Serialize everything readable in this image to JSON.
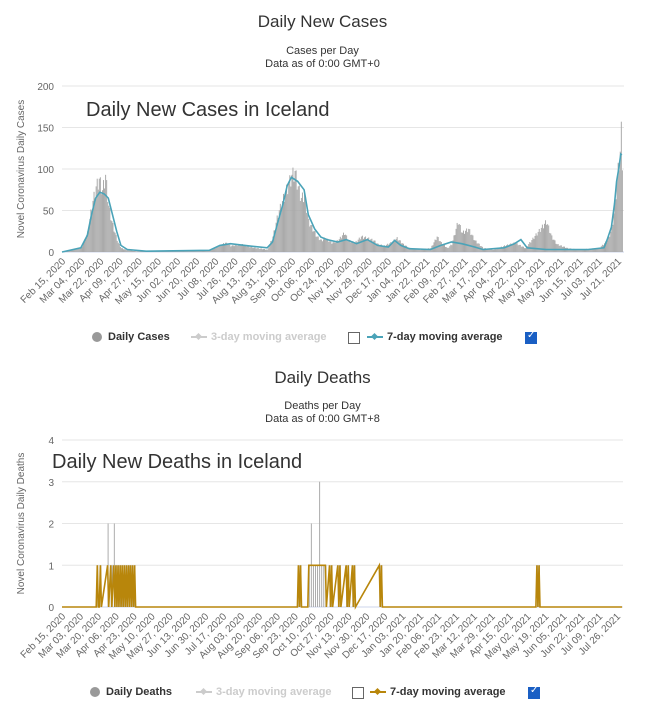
{
  "cases": {
    "title": "Daily New Cases",
    "subtitle_line1": "Cases per Day",
    "subtitle_line2": "Data as of 0:00 GMT+0",
    "overlay_title": "Daily New Cases in Iceland",
    "legend": {
      "bars": "Daily Cases",
      "ma3": "3-day moving average",
      "ma7": "7-day moving average"
    },
    "colors": {
      "bars": "#a6a6a6",
      "ma7": "#4aa3b8",
      "ma3": "#cccccc"
    },
    "chart_data": {
      "type": "bar",
      "ylabel": "Novel Coronavirus Daily Cases",
      "ylim": [
        0,
        200
      ],
      "yticks": [
        0,
        50,
        100,
        150,
        200
      ],
      "x_ticks": [
        "Feb 15, 2020",
        "Mar 04, 2020",
        "Mar 22, 2020",
        "Apr 09, 2020",
        "Apr 27, 2020",
        "May 15, 2020",
        "Jun 02, 2020",
        "Jun 20, 2020",
        "Jul 08, 2020",
        "Jul 26, 2020",
        "Aug 13, 2020",
        "Aug 31, 2020",
        "Sep 18, 2020",
        "Oct 06, 2020",
        "Oct 24, 2020",
        "Nov 11, 2020",
        "Nov 29, 2020",
        "Dec 17, 2020",
        "Jan 04, 2021",
        "Jan 22, 2021",
        "Feb 09, 2021",
        "Feb 27, 2021",
        "Mar 17, 2021",
        "Apr 04, 2021",
        "Apr 22, 2021",
        "May 10, 2021",
        "May 28, 2021",
        "Jun 15, 2021",
        "Jul 03, 2021",
        "Jul 21, 2021"
      ],
      "series": [
        {
          "name": "Daily Cases",
          "kind": "bar",
          "points": [
            [
              0,
              0
            ],
            [
              18,
              5
            ],
            [
              24,
              25
            ],
            [
              28,
              60
            ],
            [
              32,
              85
            ],
            [
              35,
              95
            ],
            [
              38,
              80
            ],
            [
              41,
              100
            ],
            [
              44,
              60
            ],
            [
              47,
              40
            ],
            [
              50,
              25
            ],
            [
              53,
              12
            ],
            [
              56,
              5
            ],
            [
              60,
              3
            ],
            [
              70,
              1
            ],
            [
              100,
              1
            ],
            [
              140,
              2
            ],
            [
              155,
              12
            ],
            [
              160,
              8
            ],
            [
              170,
              10
            ],
            [
              180,
              6
            ],
            [
              190,
              4
            ],
            [
              195,
              3
            ],
            [
              200,
              20
            ],
            [
              205,
              50
            ],
            [
              210,
              70
            ],
            [
              214,
              85
            ],
            [
              218,
              100
            ],
            [
              221,
              105
            ],
            [
              224,
              85
            ],
            [
              227,
              70
            ],
            [
              230,
              75
            ],
            [
              234,
              40
            ],
            [
              238,
              30
            ],
            [
              242,
              20
            ],
            [
              246,
              15
            ],
            [
              250,
              18
            ],
            [
              256,
              12
            ],
            [
              262,
              15
            ],
            [
              268,
              25
            ],
            [
              272,
              15
            ],
            [
              278,
              12
            ],
            [
              284,
              20
            ],
            [
              290,
              18
            ],
            [
              296,
              15
            ],
            [
              300,
              10
            ],
            [
              306,
              8
            ],
            [
              312,
              12
            ],
            [
              318,
              18
            ],
            [
              324,
              10
            ],
            [
              330,
              5
            ],
            [
              340,
              3
            ],
            [
              350,
              5
            ],
            [
              356,
              20
            ],
            [
              360,
              12
            ],
            [
              366,
              5
            ],
            [
              370,
              10
            ],
            [
              376,
              40
            ],
            [
              380,
              25
            ],
            [
              386,
              30
            ],
            [
              392,
              15
            ],
            [
              400,
              5
            ],
            [
              410,
              3
            ],
            [
              420,
              8
            ],
            [
              430,
              12
            ],
            [
              440,
              5
            ],
            [
              460,
              40
            ],
            [
              465,
              20
            ],
            [
              470,
              10
            ],
            [
              480,
              5
            ],
            [
              490,
              3
            ],
            [
              500,
              4
            ],
            [
              510,
              5
            ],
            [
              518,
              15
            ],
            [
              522,
              30
            ],
            [
              525,
              60
            ],
            [
              527,
              95
            ],
            [
              529,
              120
            ],
            [
              530,
              130
            ],
            [
              531,
              157
            ],
            [
              532,
              120
            ]
          ]
        },
        {
          "name": "7-day moving average",
          "kind": "line",
          "points": [
            [
              0,
              0
            ],
            [
              18,
              5
            ],
            [
              24,
              20
            ],
            [
              28,
              45
            ],
            [
              32,
              65
            ],
            [
              36,
              72
            ],
            [
              40,
              70
            ],
            [
              44,
              65
            ],
            [
              48,
              45
            ],
            [
              52,
              25
            ],
            [
              56,
              8
            ],
            [
              62,
              3
            ],
            [
              80,
              1
            ],
            [
              140,
              2
            ],
            [
              150,
              8
            ],
            [
              160,
              10
            ],
            [
              180,
              7
            ],
            [
              195,
              5
            ],
            [
              200,
              12
            ],
            [
              205,
              35
            ],
            [
              210,
              58
            ],
            [
              214,
              80
            ],
            [
              218,
              90
            ],
            [
              224,
              85
            ],
            [
              230,
              75
            ],
            [
              234,
              45
            ],
            [
              240,
              28
            ],
            [
              246,
              18
            ],
            [
              252,
              15
            ],
            [
              262,
              12
            ],
            [
              270,
              15
            ],
            [
              280,
              10
            ],
            [
              290,
              15
            ],
            [
              300,
              8
            ],
            [
              310,
              6
            ],
            [
              316,
              14
            ],
            [
              322,
              8
            ],
            [
              330,
              4
            ],
            [
              350,
              3
            ],
            [
              360,
              8
            ],
            [
              370,
              12
            ],
            [
              380,
              10
            ],
            [
              392,
              6
            ],
            [
              400,
              3
            ],
            [
              420,
              5
            ],
            [
              430,
              10
            ],
            [
              436,
              15
            ],
            [
              442,
              5
            ],
            [
              460,
              3
            ],
            [
              480,
              3
            ],
            [
              500,
              3
            ],
            [
              515,
              5
            ],
            [
              518,
              15
            ],
            [
              522,
              30
            ],
            [
              525,
              58
            ],
            [
              527,
              85
            ],
            [
              529,
              100
            ],
            [
              531,
              118
            ],
            [
              532,
              117
            ]
          ]
        }
      ]
    }
  },
  "deaths": {
    "title": "Daily Deaths",
    "subtitle_line1": "Deaths per Day",
    "subtitle_line2": "Data as of 0:00 GMT+8",
    "overlay_title": "Daily New Deaths in Iceland",
    "legend": {
      "bars": "Daily Deaths",
      "ma3": "3-day moving average",
      "ma7": "7-day moving average"
    },
    "colors": {
      "bars": "#a6a6a6",
      "ma7": "#b8860b",
      "ma3": "#cccccc"
    },
    "chart_data": {
      "type": "bar",
      "ylabel": "Novel Coronavirus Daily Deaths",
      "ylim": [
        0,
        4
      ],
      "yticks": [
        0,
        1,
        2,
        3,
        4
      ],
      "x_ticks": [
        "Feb 15, 2020",
        "Mar 03, 2020",
        "Mar 20, 2020",
        "Apr 06, 2020",
        "Apr 23, 2020",
        "May 10, 2020",
        "May 27, 2020",
        "Jun 13, 2020",
        "Jun 30, 2020",
        "Jul 17, 2020",
        "Aug 03, 2020",
        "Aug 20, 2020",
        "Sep 06, 2020",
        "Sep 23, 2020",
        "Oct 10, 2020",
        "Oct 27, 2020",
        "Nov 13, 2020",
        "Nov 30, 2020",
        "Dec 17, 2020",
        "Jan 03, 2021",
        "Jan 20, 2021",
        "Feb 06, 2021",
        "Feb 23, 2021",
        "Mar 12, 2021",
        "Mar 29, 2021",
        "Apr 15, 2021",
        "May 02, 2021",
        "May 19, 2021",
        "Jun 05, 2021",
        "Jun 22, 2021",
        "Jul 09, 2021",
        "Jul 26, 2021"
      ],
      "series": [
        {
          "name": "Daily Deaths",
          "kind": "bar",
          "points": [
            [
              34,
              1
            ],
            [
              37,
              1
            ],
            [
              44,
              2
            ],
            [
              47,
              1
            ],
            [
              48,
              1
            ],
            [
              50,
              2
            ],
            [
              52,
              1
            ],
            [
              54,
              1
            ],
            [
              56,
              1
            ],
            [
              58,
              1
            ],
            [
              60,
              1
            ],
            [
              62,
              1
            ],
            [
              64,
              1
            ],
            [
              66,
              1
            ],
            [
              68,
              1
            ],
            [
              70,
              1
            ],
            [
              228,
              1
            ],
            [
              230,
              1
            ],
            [
              238,
              1
            ],
            [
              240,
              2
            ],
            [
              242,
              1
            ],
            [
              244,
              1
            ],
            [
              246,
              1
            ],
            [
              248,
              3
            ],
            [
              250,
              1
            ],
            [
              252,
              1
            ],
            [
              254,
              1
            ],
            [
              258,
              1
            ],
            [
              260,
              1
            ],
            [
              266,
              1
            ],
            [
              268,
              1
            ],
            [
              274,
              1
            ],
            [
              276,
              1
            ],
            [
              280,
              1
            ],
            [
              282,
              1
            ],
            [
              306,
              1
            ],
            [
              308,
              1
            ],
            [
              458,
              1
            ],
            [
              460,
              1
            ]
          ]
        },
        {
          "name": "7-day moving average",
          "kind": "line",
          "points": [
            [
              0,
              0
            ],
            [
              33,
              0
            ],
            [
              34,
              1
            ],
            [
              35,
              0
            ],
            [
              36,
              0
            ],
            [
              37,
              1
            ],
            [
              38,
              0
            ],
            [
              44,
              1
            ],
            [
              45,
              0
            ],
            [
              47,
              1
            ],
            [
              48,
              0
            ],
            [
              50,
              1
            ],
            [
              51,
              0
            ],
            [
              52,
              1
            ],
            [
              53,
              0
            ],
            [
              54,
              1
            ],
            [
              55,
              0
            ],
            [
              56,
              1
            ],
            [
              57,
              0
            ],
            [
              58,
              1
            ],
            [
              59,
              0
            ],
            [
              60,
              1
            ],
            [
              61,
              0
            ],
            [
              62,
              1
            ],
            [
              63,
              0
            ],
            [
              64,
              1
            ],
            [
              65,
              0
            ],
            [
              66,
              1
            ],
            [
              67,
              0
            ],
            [
              68,
              1
            ],
            [
              69,
              0
            ],
            [
              70,
              1
            ],
            [
              71,
              0
            ],
            [
              227,
              0
            ],
            [
              228,
              1
            ],
            [
              229,
              0
            ],
            [
              230,
              1
            ],
            [
              231,
              0
            ],
            [
              237,
              0
            ],
            [
              238,
              1
            ],
            [
              240,
              1
            ],
            [
              242,
              1
            ],
            [
              244,
              1
            ],
            [
              246,
              1
            ],
            [
              248,
              1
            ],
            [
              250,
              1
            ],
            [
              252,
              1
            ],
            [
              254,
              1
            ],
            [
              255,
              0
            ],
            [
              258,
              1
            ],
            [
              259,
              0
            ],
            [
              260,
              1
            ],
            [
              261,
              0
            ],
            [
              266,
              1
            ],
            [
              267,
              0
            ],
            [
              268,
              1
            ],
            [
              269,
              0
            ],
            [
              274,
              1
            ],
            [
              275,
              0
            ],
            [
              276,
              1
            ],
            [
              277,
              0
            ],
            [
              280,
              1
            ],
            [
              281,
              0
            ],
            [
              282,
              1
            ],
            [
              283,
              0
            ],
            [
              306,
              1
            ],
            [
              307,
              0
            ],
            [
              308,
              1
            ],
            [
              309,
              0
            ],
            [
              457,
              0
            ],
            [
              458,
              1
            ],
            [
              459,
              0
            ],
            [
              460,
              1
            ],
            [
              461,
              0
            ],
            [
              540,
              0
            ]
          ]
        }
      ]
    }
  }
}
